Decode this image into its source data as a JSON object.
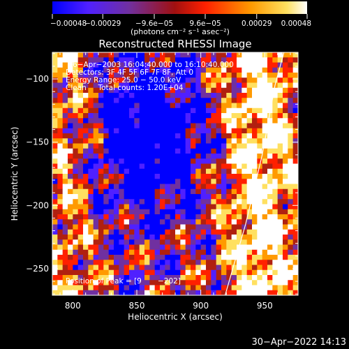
{
  "chart_data": {
    "type": "heatmap",
    "title": "Reconstructed RHESSI Image",
    "xlabel": "Heliocentric X (arcsec)",
    "ylabel": "Heliocentric Y (arcsec)",
    "xlim": [
      784,
      976
    ],
    "ylim": [
      -271,
      -79
    ],
    "x_ticks": [
      {
        "value": 800,
        "label": "800"
      },
      {
        "value": 850,
        "label": "850"
      },
      {
        "value": 900,
        "label": "900"
      },
      {
        "value": 950,
        "label": "950"
      }
    ],
    "y_ticks": [
      {
        "value": -100,
        "label": "−100"
      },
      {
        "value": -150,
        "label": "−150"
      },
      {
        "value": -200,
        "label": "−200"
      },
      {
        "value": -250,
        "label": "−250"
      }
    ],
    "colorbar": {
      "range": [
        -0.00048,
        0.00048
      ],
      "tick_values": [
        -0.00048,
        -0.00029,
        -9.6e-05,
        9.6e-05,
        0.00029,
        0.00048
      ],
      "tick_labels": [
        "−0.00048",
        "−0.00029",
        "−9.6e−05",
        "9.6e−05",
        "0.00029",
        "0.00048"
      ],
      "unit_label": "(photons cm⁻² s⁻¹ asec⁻²)",
      "colors": [
        "#0000ff",
        "#5020ff",
        "#7030a0",
        "#b02010",
        "#ff2000",
        "#ff9a00",
        "#ffe060",
        "#ffffff"
      ]
    },
    "annotations": [
      "6−Apr−2003 16:04:40.000 to 16:10:40.000",
      "Detectors: 3F 4F 5F 6F 7F 8F, Att 0",
      "Energy Range: 25.0 − 50.0 keV",
      "Clean     Total counts: 1.20E+04"
    ],
    "peak_label": "Position of Peak = [9",
    "peak_label_end": "−202]",
    "limb_points": [
      [
        919,
        -271
      ],
      [
        935,
        -215
      ],
      [
        948,
        -160
      ],
      [
        958,
        -105
      ],
      [
        965,
        -79
      ]
    ]
  },
  "timestamp": "30−Apr−2022 14:13"
}
